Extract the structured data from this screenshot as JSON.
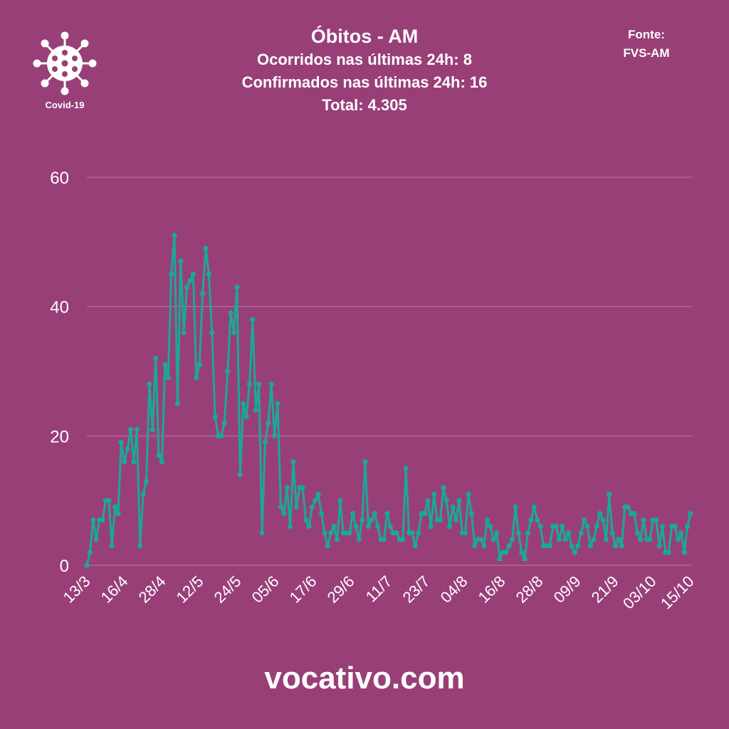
{
  "header": {
    "title": "Óbitos - AM",
    "line1": "Ocorridos nas últimas 24h: 8",
    "line2": "Confirmados nas últimas 24h: 16",
    "line3": "Total: 4.305"
  },
  "source": {
    "label": "Fonte:",
    "name": "FVS-AM"
  },
  "logo": {
    "icon": "virus-icon",
    "label": "Covid-19"
  },
  "footer": {
    "site": "vocativo.com"
  },
  "colors": {
    "background": "#993f78",
    "line": "#1aa89a",
    "grid": "#b57aa3",
    "text": "#ffffff"
  },
  "chart_data": {
    "type": "line",
    "title": "Óbitos - AM",
    "xlabel": "",
    "ylabel": "",
    "ylim": [
      0,
      60
    ],
    "yticks": [
      0,
      20,
      40,
      60
    ],
    "xticks": [
      "13/3",
      "16/4",
      "28/4",
      "12/5",
      "24/5",
      "05/6",
      "17/6",
      "29/6",
      "11/7",
      "23/7",
      "04/8",
      "16/8",
      "28/8",
      "09/9",
      "21/9",
      "03/10",
      "15/10"
    ],
    "grid": true,
    "series": [
      {
        "values": [
          0,
          2,
          7,
          4,
          7,
          7,
          10,
          10,
          3,
          9,
          8,
          19,
          16,
          18,
          21,
          16,
          21,
          3,
          11,
          13,
          28,
          21,
          32,
          17,
          16,
          31,
          29,
          45,
          51,
          25,
          47,
          36,
          43,
          44,
          45,
          29,
          31,
          42,
          49,
          45,
          36,
          23,
          20,
          20,
          22,
          30,
          39,
          36,
          43,
          14,
          25,
          23,
          28,
          38,
          24,
          28,
          5,
          19,
          22,
          28,
          20,
          25,
          9,
          8,
          12,
          6,
          16,
          9,
          12,
          12,
          7,
          6,
          9,
          10,
          11,
          8,
          5,
          3,
          5,
          6,
          4,
          10,
          5,
          5,
          5,
          8,
          6,
          4,
          7,
          16,
          6,
          7,
          8,
          6,
          4,
          4,
          8,
          6,
          5,
          5,
          4,
          4,
          15,
          5,
          5,
          3,
          5,
          8,
          8,
          10,
          6,
          11,
          7,
          7,
          12,
          10,
          6,
          9,
          7,
          10,
          5,
          5,
          11,
          8,
          3,
          4,
          4,
          3,
          7,
          6,
          4,
          5,
          1,
          2,
          2,
          3,
          4,
          9,
          5,
          2,
          1,
          5,
          7,
          9,
          7,
          6,
          3,
          3,
          3,
          6,
          6,
          4,
          6,
          4,
          5,
          3,
          2,
          3,
          5,
          7,
          6,
          3,
          4,
          6,
          8,
          7,
          4,
          11,
          5,
          3,
          4,
          3,
          9,
          9,
          8,
          8,
          5,
          4,
          7,
          4,
          4,
          7,
          7,
          3,
          6,
          2,
          2,
          6,
          6,
          4,
          5,
          2,
          6,
          8
        ]
      }
    ]
  }
}
